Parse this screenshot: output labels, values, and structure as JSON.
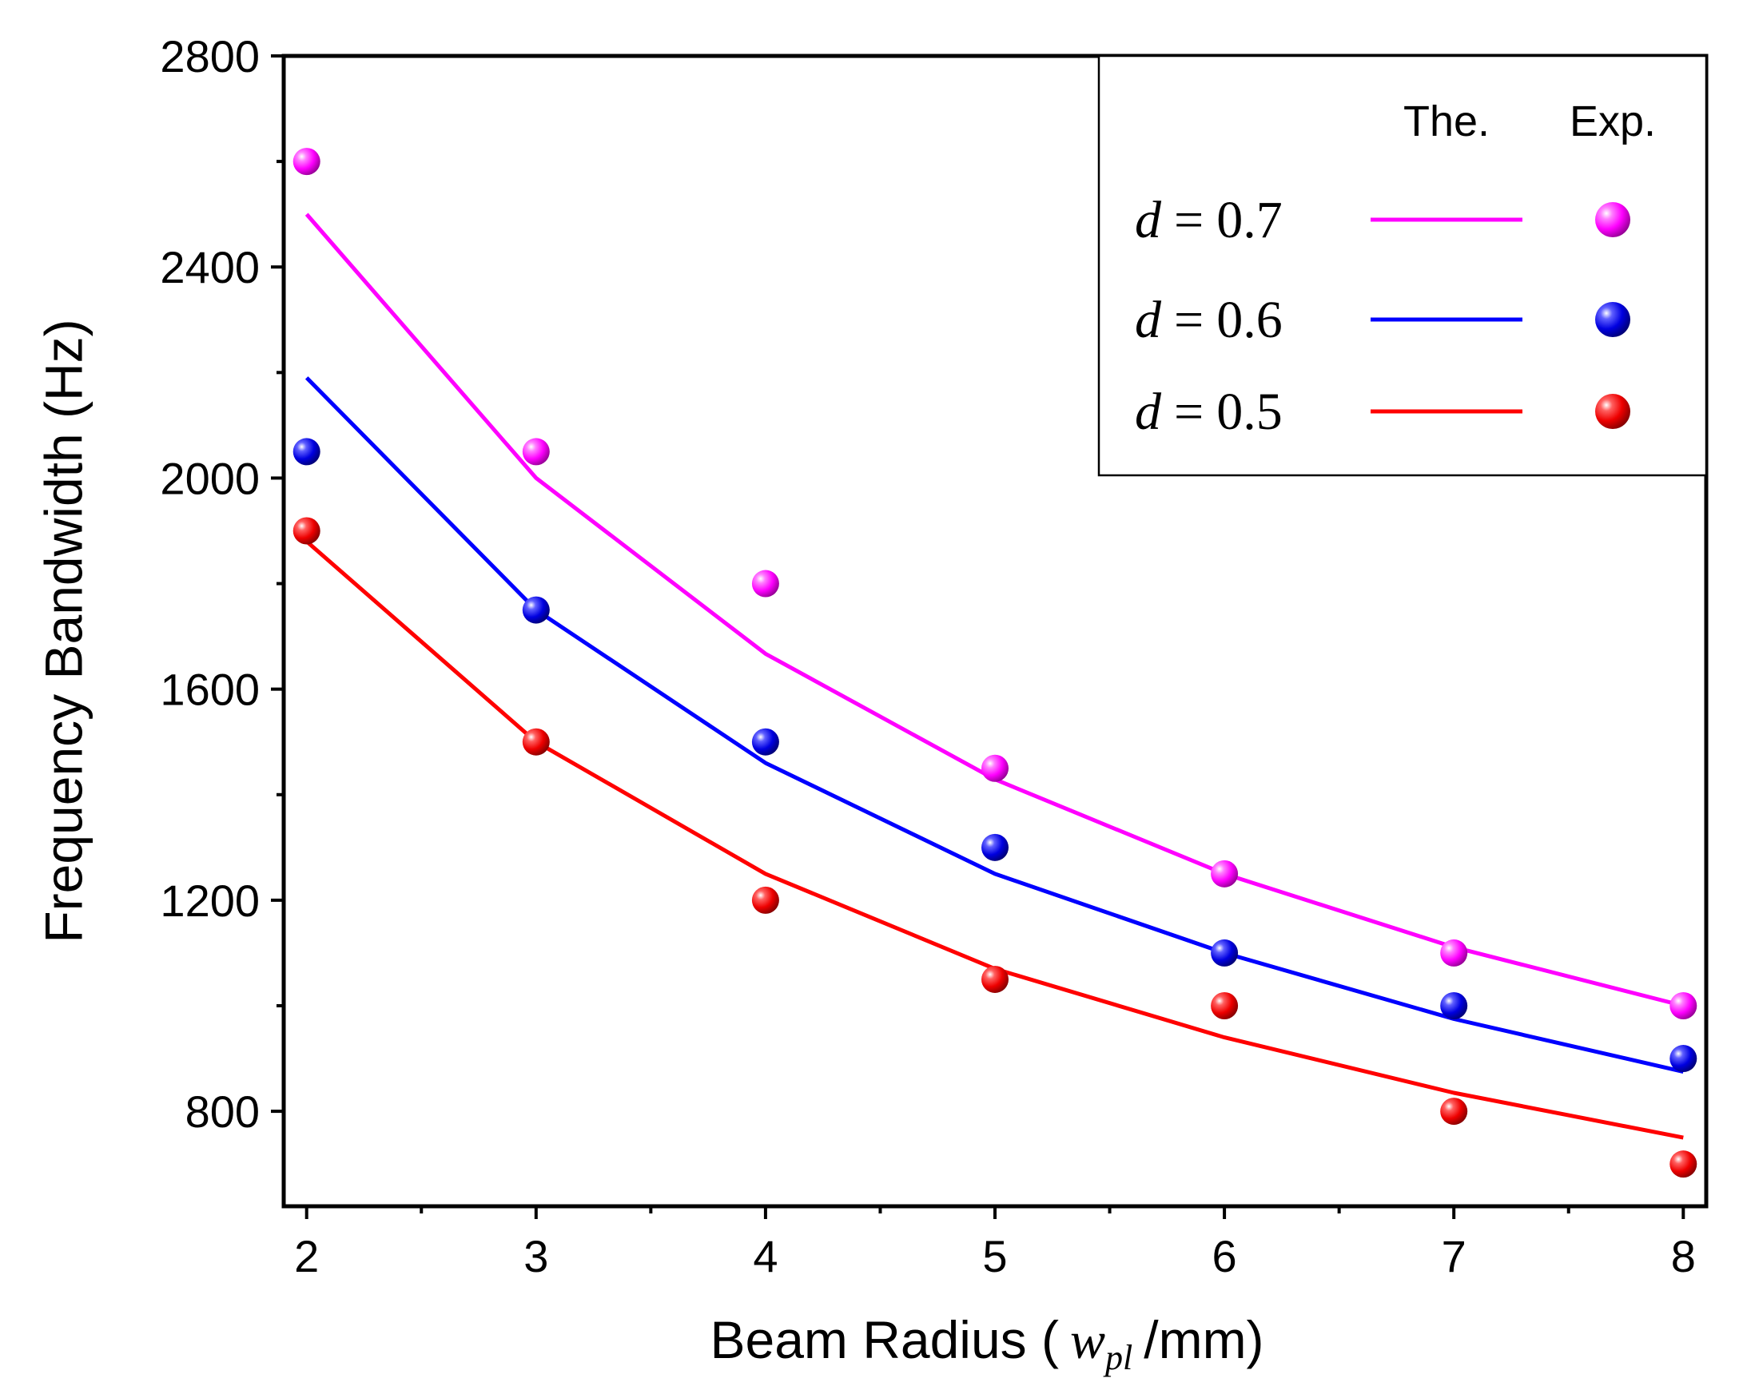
{
  "chart_data": {
    "type": "line",
    "title": "",
    "xlabel_prefix": "Beam Radius (",
    "xlabel_var": "w",
    "xlabel_sub": "pl",
    "xlabel_suffix": "/mm)",
    "ylabel": "Frequency Bandwidth (Hz)",
    "xlim": [
      1.9,
      8.1
    ],
    "ylim": [
      620,
      2800
    ],
    "xticks": [
      2,
      3,
      4,
      5,
      6,
      7,
      8
    ],
    "xtick_labels": [
      "2",
      "3",
      "4",
      "5",
      "6",
      "7",
      "8"
    ],
    "xminor": [
      2.5,
      3.5,
      4.5,
      5.5,
      6.5,
      7.5
    ],
    "yticks": [
      800,
      1200,
      1600,
      2000,
      2400,
      2800
    ],
    "ytick_labels": [
      "800",
      "1200",
      "1600",
      "2000",
      "2400",
      "2800"
    ],
    "yminor": [
      1000,
      1400,
      1800,
      2200,
      2600
    ],
    "legend": {
      "position": "top-right",
      "header_theory": "The.",
      "header_experiment": "Exp."
    },
    "x": [
      2,
      3,
      4,
      5,
      6,
      7,
      8
    ],
    "series": [
      {
        "name": "d = 0.7",
        "var": "d",
        "eq": "=",
        "value": "0.7",
        "color": "#ff00ff",
        "theory": [
          2500,
          2000,
          1667,
          1429,
          1250,
          1111,
          1000
        ],
        "experiment": [
          2600,
          2050,
          1800,
          1450,
          1250,
          1100,
          1000
        ]
      },
      {
        "name": "d = 0.6",
        "var": "d",
        "eq": "=",
        "value": "0.6",
        "color": "#0000ff",
        "theory": [
          2190,
          1750,
          1460,
          1250,
          1100,
          975,
          875
        ],
        "experiment": [
          2050,
          1750,
          1500,
          1300,
          1100,
          1000,
          900
        ]
      },
      {
        "name": "d = 0.5",
        "var": "d",
        "eq": "=",
        "value": "0.5",
        "color": "#ff0000",
        "theory": [
          1880,
          1500,
          1250,
          1070,
          940,
          835,
          750
        ],
        "experiment": [
          1900,
          1500,
          1200,
          1050,
          1000,
          800,
          700
        ]
      }
    ]
  }
}
